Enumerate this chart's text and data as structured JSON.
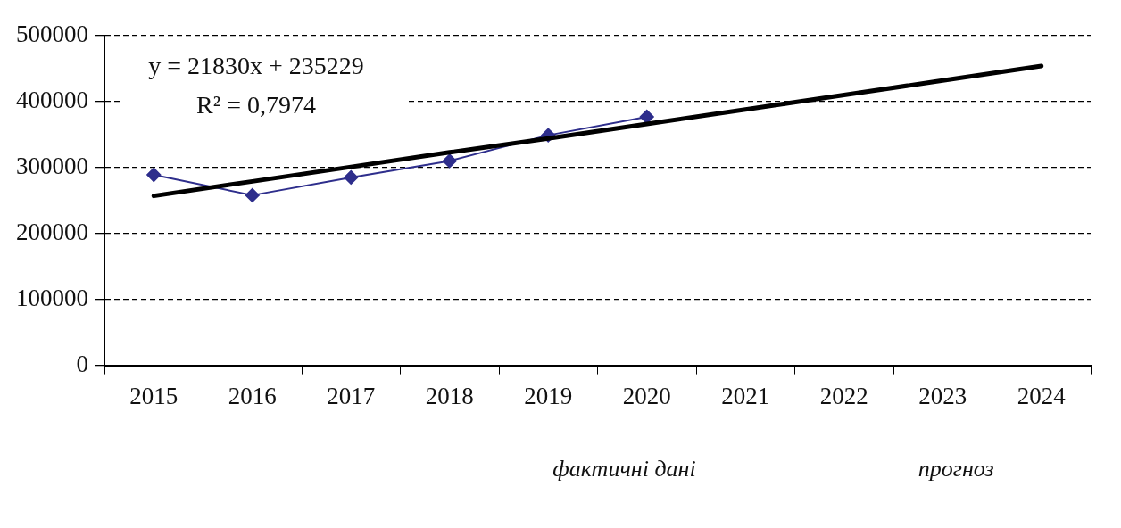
{
  "chart_data": {
    "type": "line",
    "categories": [
      "2015",
      "2016",
      "2017",
      "2018",
      "2019",
      "2020",
      "2021",
      "2022",
      "2023",
      "2024"
    ],
    "series": [
      {
        "color": "#2e2e8c",
        "values": [
          289000,
          258000,
          285000,
          310000,
          349000,
          377000,
          null,
          null,
          null,
          null
        ]
      },
      {
        "color": "#000000",
        "marker": "none",
        "values": [
          257000,
          279000,
          301000,
          323000,
          344000,
          366000,
          388000,
          410000,
          432000,
          454000
        ]
      }
    ],
    "ylim": [
      0,
      500000
    ],
    "yticks": [
      0,
      100000,
      200000,
      300000,
      400000,
      500000
    ],
    "grid": "y",
    "legend": false,
    "line_style": "solid",
    "marker": "diamond",
    "annotations": [
      "y = 21830x + 235229",
      "R² = 0,7974",
      "фактичні дані",
      "прогноз"
    ]
  }
}
